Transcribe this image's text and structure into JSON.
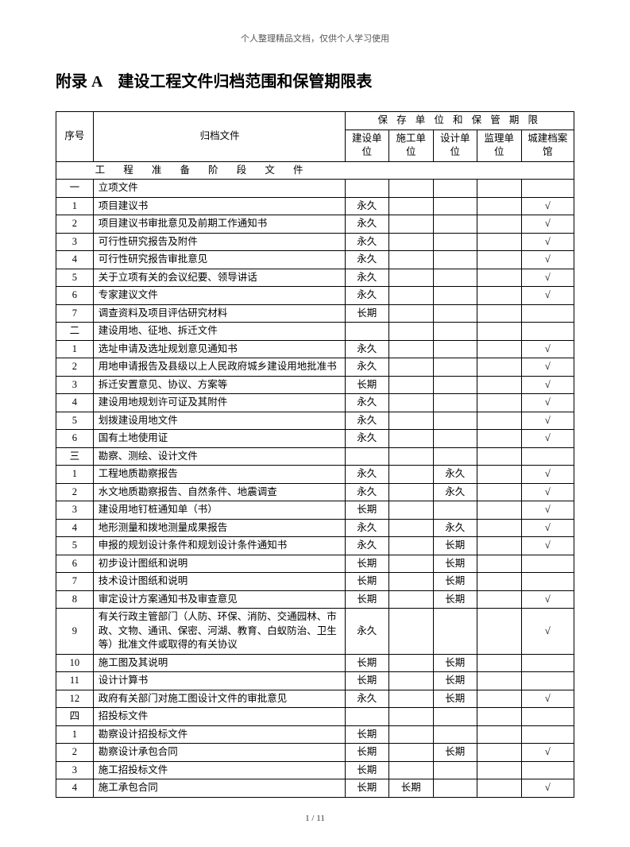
{
  "header_note": "个人整理精品文档，仅供个人学习使用",
  "title": "附录 A　建设工程文件归档范围和保管期限表",
  "columns": {
    "seq": "序号",
    "file": "归档文件",
    "storage_header": "保 存 单 位 和 保 管 期 限",
    "c1": "建设单位",
    "c2": "施工单位",
    "c3": "设计单位",
    "c4": "监理单位",
    "c5": "城建档案馆"
  },
  "section1_header": "工 程 准 备 阶 段 文 件",
  "rows": [
    {
      "seq": "一",
      "file": "立项文件",
      "c1": "",
      "c2": "",
      "c3": "",
      "c4": "",
      "c5": ""
    },
    {
      "seq": "1",
      "file": "项目建议书",
      "c1": "永久",
      "c2": "",
      "c3": "",
      "c4": "",
      "c5": "√"
    },
    {
      "seq": "2",
      "file": "项目建议书审批意见及前期工作通知书",
      "c1": "永久",
      "c2": "",
      "c3": "",
      "c4": "",
      "c5": "√"
    },
    {
      "seq": "3",
      "file": "可行性研究报告及附件",
      "c1": "永久",
      "c2": "",
      "c3": "",
      "c4": "",
      "c5": "√"
    },
    {
      "seq": "4",
      "file": "可行性研究报告审批意见",
      "c1": "永久",
      "c2": "",
      "c3": "",
      "c4": "",
      "c5": "√"
    },
    {
      "seq": "5",
      "file": "关于立项有关的会议纪要、领导讲话",
      "c1": "永久",
      "c2": "",
      "c3": "",
      "c4": "",
      "c5": "√"
    },
    {
      "seq": "6",
      "file": "专家建议文件",
      "c1": "永久",
      "c2": "",
      "c3": "",
      "c4": "",
      "c5": "√"
    },
    {
      "seq": "7",
      "file": "调查资料及项目评估研究材料",
      "c1": "长期",
      "c2": "",
      "c3": "",
      "c4": "",
      "c5": ""
    },
    {
      "seq": "二",
      "file": "建设用地、征地、拆迁文件",
      "c1": "",
      "c2": "",
      "c3": "",
      "c4": "",
      "c5": ""
    },
    {
      "seq": "1",
      "file": "选址申请及选址规划意见通知书",
      "c1": "永久",
      "c2": "",
      "c3": "",
      "c4": "",
      "c5": "√"
    },
    {
      "seq": "2",
      "file": "用地申请报告及县级以上人民政府城乡建设用地批准书",
      "c1": "永久",
      "c2": "",
      "c3": "",
      "c4": "",
      "c5": "√"
    },
    {
      "seq": "3",
      "file": "拆迁安置意见、协议、方案等",
      "c1": "长期",
      "c2": "",
      "c3": "",
      "c4": "",
      "c5": "√"
    },
    {
      "seq": "4",
      "file": "建设用地规划许可证及其附件",
      "c1": "永久",
      "c2": "",
      "c3": "",
      "c4": "",
      "c5": "√"
    },
    {
      "seq": "5",
      "file": "划拨建设用地文件",
      "c1": "永久",
      "c2": "",
      "c3": "",
      "c4": "",
      "c5": "√"
    },
    {
      "seq": "6",
      "file": "国有土地使用证",
      "c1": "永久",
      "c2": "",
      "c3": "",
      "c4": "",
      "c5": "√"
    },
    {
      "seq": "三",
      "file": "勘察、测绘、设计文件",
      "c1": "",
      "c2": "",
      "c3": "",
      "c4": "",
      "c5": ""
    },
    {
      "seq": "1",
      "file": "工程地质勘察报告",
      "c1": "永久",
      "c2": "",
      "c3": "永久",
      "c4": "",
      "c5": "√"
    },
    {
      "seq": "2",
      "file": "水文地质勘察报告、自然条件、地震调查",
      "c1": "永久",
      "c2": "",
      "c3": "永久",
      "c4": "",
      "c5": "√"
    },
    {
      "seq": "3",
      "file": "建设用地钉桩通知单（书）",
      "c1": "长期",
      "c2": "",
      "c3": "",
      "c4": "",
      "c5": "√"
    },
    {
      "seq": "4",
      "file": "地形测量和拨地测量成果报告",
      "c1": "永久",
      "c2": "",
      "c3": "永久",
      "c4": "",
      "c5": "√"
    },
    {
      "seq": "5",
      "file": "申报的规划设计条件和规划设计条件通知书",
      "c1": "永久",
      "c2": "",
      "c3": "长期",
      "c4": "",
      "c5": "√"
    },
    {
      "seq": "6",
      "file": "初步设计图纸和说明",
      "c1": "长期",
      "c2": "",
      "c3": "长期",
      "c4": "",
      "c5": ""
    },
    {
      "seq": "7",
      "file": "技术设计图纸和说明",
      "c1": "长期",
      "c2": "",
      "c3": "长期",
      "c4": "",
      "c5": ""
    },
    {
      "seq": "8",
      "file": "审定设计方案通知书及审查意见",
      "c1": "长期",
      "c2": "",
      "c3": "长期",
      "c4": "",
      "c5": "√"
    },
    {
      "seq": "9",
      "file": "有关行政主管部门（人防、环保、消防、交通园林、市政、文物、通讯、保密、河湖、教育、白蚁防治、卫生等）批准文件或取得的有关协议",
      "c1": "永久",
      "c2": "",
      "c3": "",
      "c4": "",
      "c5": "√"
    },
    {
      "seq": "10",
      "file": "施工图及其说明",
      "c1": "长期",
      "c2": "",
      "c3": "长期",
      "c4": "",
      "c5": ""
    },
    {
      "seq": "11",
      "file": "设计计算书",
      "c1": "长期",
      "c2": "",
      "c3": "长期",
      "c4": "",
      "c5": ""
    },
    {
      "seq": "12",
      "file": "政府有关部门对施工图设计文件的审批意见",
      "c1": "永久",
      "c2": "",
      "c3": "长期",
      "c4": "",
      "c5": "√"
    },
    {
      "seq": "四",
      "file": "招投标文件",
      "c1": "",
      "c2": "",
      "c3": "",
      "c4": "",
      "c5": ""
    },
    {
      "seq": "1",
      "file": "勘察设计招投标文件",
      "c1": "长期",
      "c2": "",
      "c3": "",
      "c4": "",
      "c5": ""
    },
    {
      "seq": "2",
      "file": "勘察设计承包合同",
      "c1": "长期",
      "c2": "",
      "c3": "长期",
      "c4": "",
      "c5": "√"
    },
    {
      "seq": "3",
      "file": "施工招投标文件",
      "c1": "长期",
      "c2": "",
      "c3": "",
      "c4": "",
      "c5": ""
    },
    {
      "seq": "4",
      "file": "施工承包合同",
      "c1": "长期",
      "c2": "长期",
      "c3": "",
      "c4": "",
      "c5": "√"
    }
  ],
  "footer": "1 / 11"
}
